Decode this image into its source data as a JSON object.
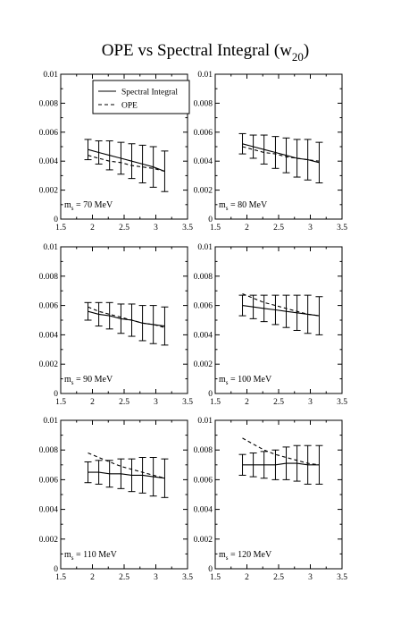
{
  "figure": {
    "title_main": "OPE vs Spectral Integral (w",
    "title_sub": "20",
    "title_close": ")"
  },
  "chart_data": [
    {
      "type": "line",
      "mass_prefix": "m",
      "mass_sub": "s",
      "mass_value": "= 70 MeV",
      "xlim": [
        1.5,
        3.5
      ],
      "ylim": [
        0,
        0.01
      ],
      "xticks": [
        "1.5",
        "2",
        "2.5",
        "3",
        "3.5"
      ],
      "yticks": [
        "0",
        "0.002",
        "0.004",
        "0.006",
        "0.008",
        "0.01"
      ],
      "legend": {
        "placement": "top-right",
        "entries": [
          "Spectral Integral",
          "OPE"
        ]
      },
      "x": [
        1.93,
        2.1,
        2.27,
        2.45,
        2.62,
        2.79,
        2.96,
        3.14
      ],
      "series": [
        {
          "name": "Spectral Integral",
          "style": "solid",
          "values": [
            0.0048,
            0.0046,
            0.0044,
            0.0042,
            0.004,
            0.0038,
            0.0036,
            0.0033
          ]
        },
        {
          "name": "OPE",
          "style": "dashed",
          "values": [
            0.0044,
            0.0042,
            0.004,
            0.0039,
            0.0037,
            0.0036,
            0.0035,
            0.0033
          ]
        }
      ],
      "errors": [
        0.0007,
        0.0008,
        0.001,
        0.0011,
        0.0012,
        0.0013,
        0.0014,
        0.0014
      ]
    },
    {
      "type": "line",
      "mass_prefix": "m",
      "mass_sub": "s",
      "mass_value": "= 80 MeV",
      "xlim": [
        1.5,
        3.5
      ],
      "ylim": [
        0,
        0.01
      ],
      "xticks": [
        "1.5",
        "2",
        "2.5",
        "3",
        "3.5"
      ],
      "yticks": [
        "0",
        "0.002",
        "0.004",
        "0.006",
        "0.008",
        "0.01"
      ],
      "x": [
        1.93,
        2.1,
        2.27,
        2.45,
        2.62,
        2.79,
        2.96,
        3.14
      ],
      "series": [
        {
          "style": "solid",
          "values": [
            0.0052,
            0.005,
            0.0048,
            0.0046,
            0.0044,
            0.0042,
            0.0041,
            0.0039
          ]
        },
        {
          "style": "dashed",
          "values": [
            0.005,
            0.0048,
            0.0046,
            0.0045,
            0.0043,
            0.0042,
            0.0041,
            0.004
          ]
        }
      ],
      "errors": [
        0.0007,
        0.0008,
        0.001,
        0.0011,
        0.0012,
        0.0013,
        0.0014,
        0.0014
      ]
    },
    {
      "type": "line",
      "mass_prefix": "m",
      "mass_sub": "s",
      "mass_value": "= 90 MeV",
      "xlim": [
        1.5,
        3.5
      ],
      "ylim": [
        0,
        0.01
      ],
      "xticks": [
        "1.5",
        "2",
        "2.5",
        "3",
        "3.5"
      ],
      "yticks": [
        "0",
        "0.002",
        "0.004",
        "0.006",
        "0.008",
        "0.01"
      ],
      "x": [
        1.93,
        2.1,
        2.27,
        2.45,
        2.62,
        2.79,
        2.96,
        3.14
      ],
      "series": [
        {
          "style": "solid",
          "values": [
            0.0056,
            0.0054,
            0.0053,
            0.0051,
            0.005,
            0.0048,
            0.0047,
            0.0046
          ]
        },
        {
          "style": "dashed",
          "values": [
            0.0059,
            0.0056,
            0.0054,
            0.0052,
            0.005,
            0.0048,
            0.0047,
            0.0045
          ]
        }
      ],
      "errors": [
        0.0006,
        0.0008,
        0.0009,
        0.001,
        0.0011,
        0.0012,
        0.0013,
        0.0013
      ]
    },
    {
      "type": "line",
      "mass_prefix": "m",
      "mass_sub": "s",
      "mass_value": "= 100 MeV",
      "xlim": [
        1.5,
        3.5
      ],
      "ylim": [
        0,
        0.01
      ],
      "xticks": [
        "1.5",
        "2",
        "2.5",
        "3",
        "3.5"
      ],
      "yticks": [
        "0",
        "0.002",
        "0.004",
        "0.006",
        "0.008",
        "0.01"
      ],
      "x": [
        1.93,
        2.1,
        2.27,
        2.45,
        2.62,
        2.79,
        2.96,
        3.14
      ],
      "series": [
        {
          "style": "solid",
          "values": [
            0.006,
            0.0059,
            0.0058,
            0.0057,
            0.0056,
            0.0055,
            0.0054,
            0.0053
          ]
        },
        {
          "style": "dashed",
          "values": [
            0.0068,
            0.0065,
            0.0062,
            0.006,
            0.0058,
            0.0056,
            0.0054,
            0.0053
          ]
        }
      ],
      "errors": [
        0.0007,
        0.0008,
        0.0009,
        0.001,
        0.0011,
        0.0012,
        0.0013,
        0.0013
      ]
    },
    {
      "type": "line",
      "mass_prefix": "m",
      "mass_sub": "s",
      "mass_value": "= 110 MeV",
      "xlim": [
        1.5,
        3.5
      ],
      "ylim": [
        0,
        0.01
      ],
      "xticks": [
        "1.5",
        "2",
        "2.5",
        "3",
        "3.5"
      ],
      "yticks": [
        "0",
        "0.002",
        "0.004",
        "0.006",
        "0.008",
        "0.01"
      ],
      "x": [
        1.93,
        2.1,
        2.27,
        2.45,
        2.62,
        2.79,
        2.96,
        3.14
      ],
      "series": [
        {
          "style": "solid",
          "values": [
            0.0065,
            0.0065,
            0.0064,
            0.0064,
            0.0063,
            0.0063,
            0.0062,
            0.0061
          ]
        },
        {
          "style": "dashed",
          "values": [
            0.0078,
            0.0075,
            0.0072,
            0.0069,
            0.0067,
            0.0065,
            0.0063,
            0.0061
          ]
        }
      ],
      "errors": [
        0.0007,
        0.0008,
        0.0009,
        0.001,
        0.0011,
        0.0012,
        0.0013,
        0.0013
      ]
    },
    {
      "type": "line",
      "mass_prefix": "m",
      "mass_sub": "s",
      "mass_value": "= 120 MeV",
      "xlim": [
        1.5,
        3.5
      ],
      "ylim": [
        0,
        0.01
      ],
      "xticks": [
        "1.5",
        "2",
        "2.5",
        "3",
        "3.5"
      ],
      "yticks": [
        "0",
        "0.002",
        "0.004",
        "0.006",
        "0.008",
        "0.01"
      ],
      "x": [
        1.93,
        2.1,
        2.27,
        2.45,
        2.62,
        2.79,
        2.96,
        3.14
      ],
      "series": [
        {
          "style": "solid",
          "values": [
            0.007,
            0.007,
            0.007,
            0.007,
            0.0071,
            0.0071,
            0.007,
            0.007
          ]
        },
        {
          "style": "dashed",
          "values": [
            0.0088,
            0.0084,
            0.008,
            0.0077,
            0.0075,
            0.0073,
            0.0071,
            0.007
          ]
        }
      ],
      "errors": [
        0.0007,
        0.0008,
        0.0009,
        0.001,
        0.0011,
        0.0012,
        0.0013,
        0.0013
      ]
    }
  ]
}
